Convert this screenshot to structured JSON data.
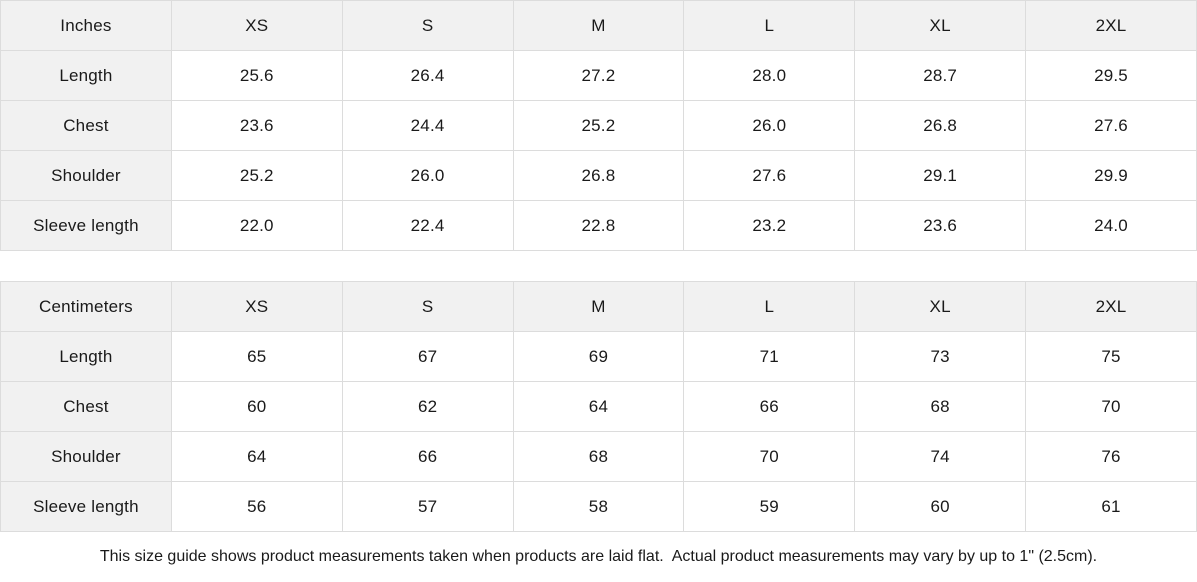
{
  "colors": {
    "header_bg": "#f1f1f1",
    "cell_bg": "#ffffff",
    "border": "#dcdcdc",
    "text": "#1a1a1a"
  },
  "tables": [
    {
      "unit_label": "Inches",
      "sizes": [
        "XS",
        "S",
        "M",
        "L",
        "XL",
        "2XL"
      ],
      "rows": [
        {
          "label": "Length",
          "values": [
            "25.6",
            "26.4",
            "27.2",
            "28.0",
            "28.7",
            "29.5"
          ]
        },
        {
          "label": "Chest",
          "values": [
            "23.6",
            "24.4",
            "25.2",
            "26.0",
            "26.8",
            "27.6"
          ]
        },
        {
          "label": "Shoulder",
          "values": [
            "25.2",
            "26.0",
            "26.8",
            "27.6",
            "29.1",
            "29.9"
          ]
        },
        {
          "label": "Sleeve length",
          "values": [
            "22.0",
            "22.4",
            "22.8",
            "23.2",
            "23.6",
            "24.0"
          ]
        }
      ]
    },
    {
      "unit_label": "Centimeters",
      "sizes": [
        "XS",
        "S",
        "M",
        "L",
        "XL",
        "2XL"
      ],
      "rows": [
        {
          "label": "Length",
          "values": [
            "65",
            "67",
            "69",
            "71",
            "73",
            "75"
          ]
        },
        {
          "label": "Chest",
          "values": [
            "60",
            "62",
            "64",
            "66",
            "68",
            "70"
          ]
        },
        {
          "label": "Shoulder",
          "values": [
            "64",
            "66",
            "68",
            "70",
            "74",
            "76"
          ]
        },
        {
          "label": "Sleeve length",
          "values": [
            "56",
            "57",
            "58",
            "59",
            "60",
            "61"
          ]
        }
      ]
    }
  ],
  "footer": {
    "note": "This size guide shows product measurements taken when products are laid flat.  Actual product measurements may vary by up to 1\" (2.5cm)."
  }
}
